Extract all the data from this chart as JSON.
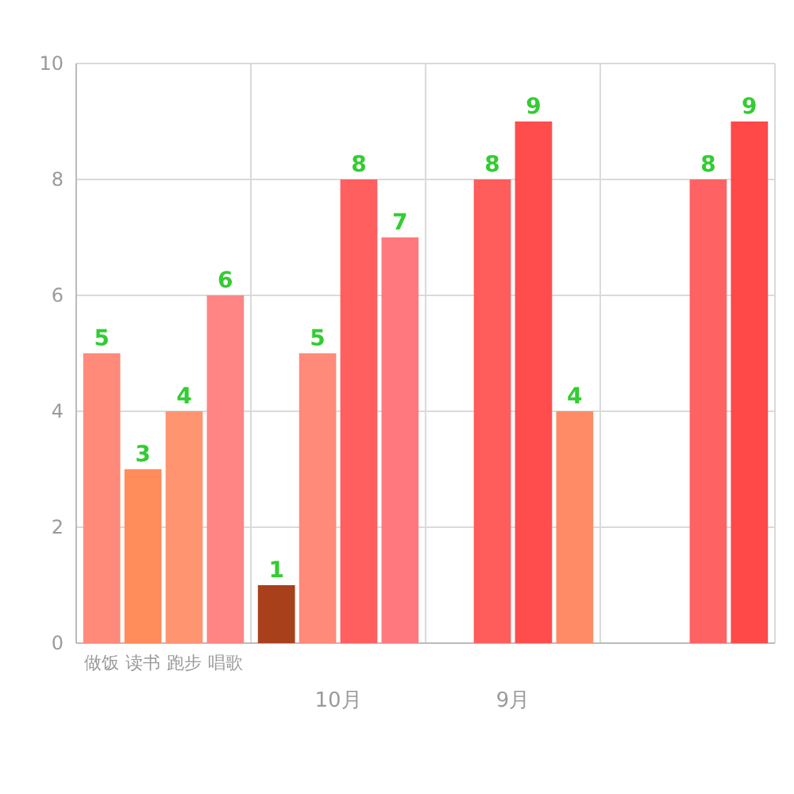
{
  "chart_data": {
    "type": "bar",
    "categories": [
      null,
      "10月",
      "9月",
      null
    ],
    "series": [
      {
        "name": "做饭",
        "values": [
          5,
          1,
          null,
          null
        ],
        "colors": [
          "#ff8a7a",
          "#a8401c",
          null,
          null
        ]
      },
      {
        "name": "读书",
        "values": [
          3,
          5,
          8,
          null
        ],
        "colors": [
          "#ff8c5a",
          "#ff8a7a",
          "#ff5c5c",
          null
        ]
      },
      {
        "name": "跑步",
        "values": [
          4,
          8,
          9,
          8
        ],
        "colors": [
          "#ff9470",
          "#ff5f5f",
          "#ff4d4d",
          "#ff6262"
        ]
      },
      {
        "name": "唱歌",
        "values": [
          6,
          7,
          4,
          9
        ],
        "colors": [
          "#ff8585",
          "#ff787e",
          "#ff8a66",
          "#ff4848"
        ]
      }
    ],
    "ylim": [
      0,
      10
    ],
    "yticks": [
      0,
      2,
      4,
      6,
      8,
      10
    ],
    "grid": true,
    "data_labels": true
  }
}
